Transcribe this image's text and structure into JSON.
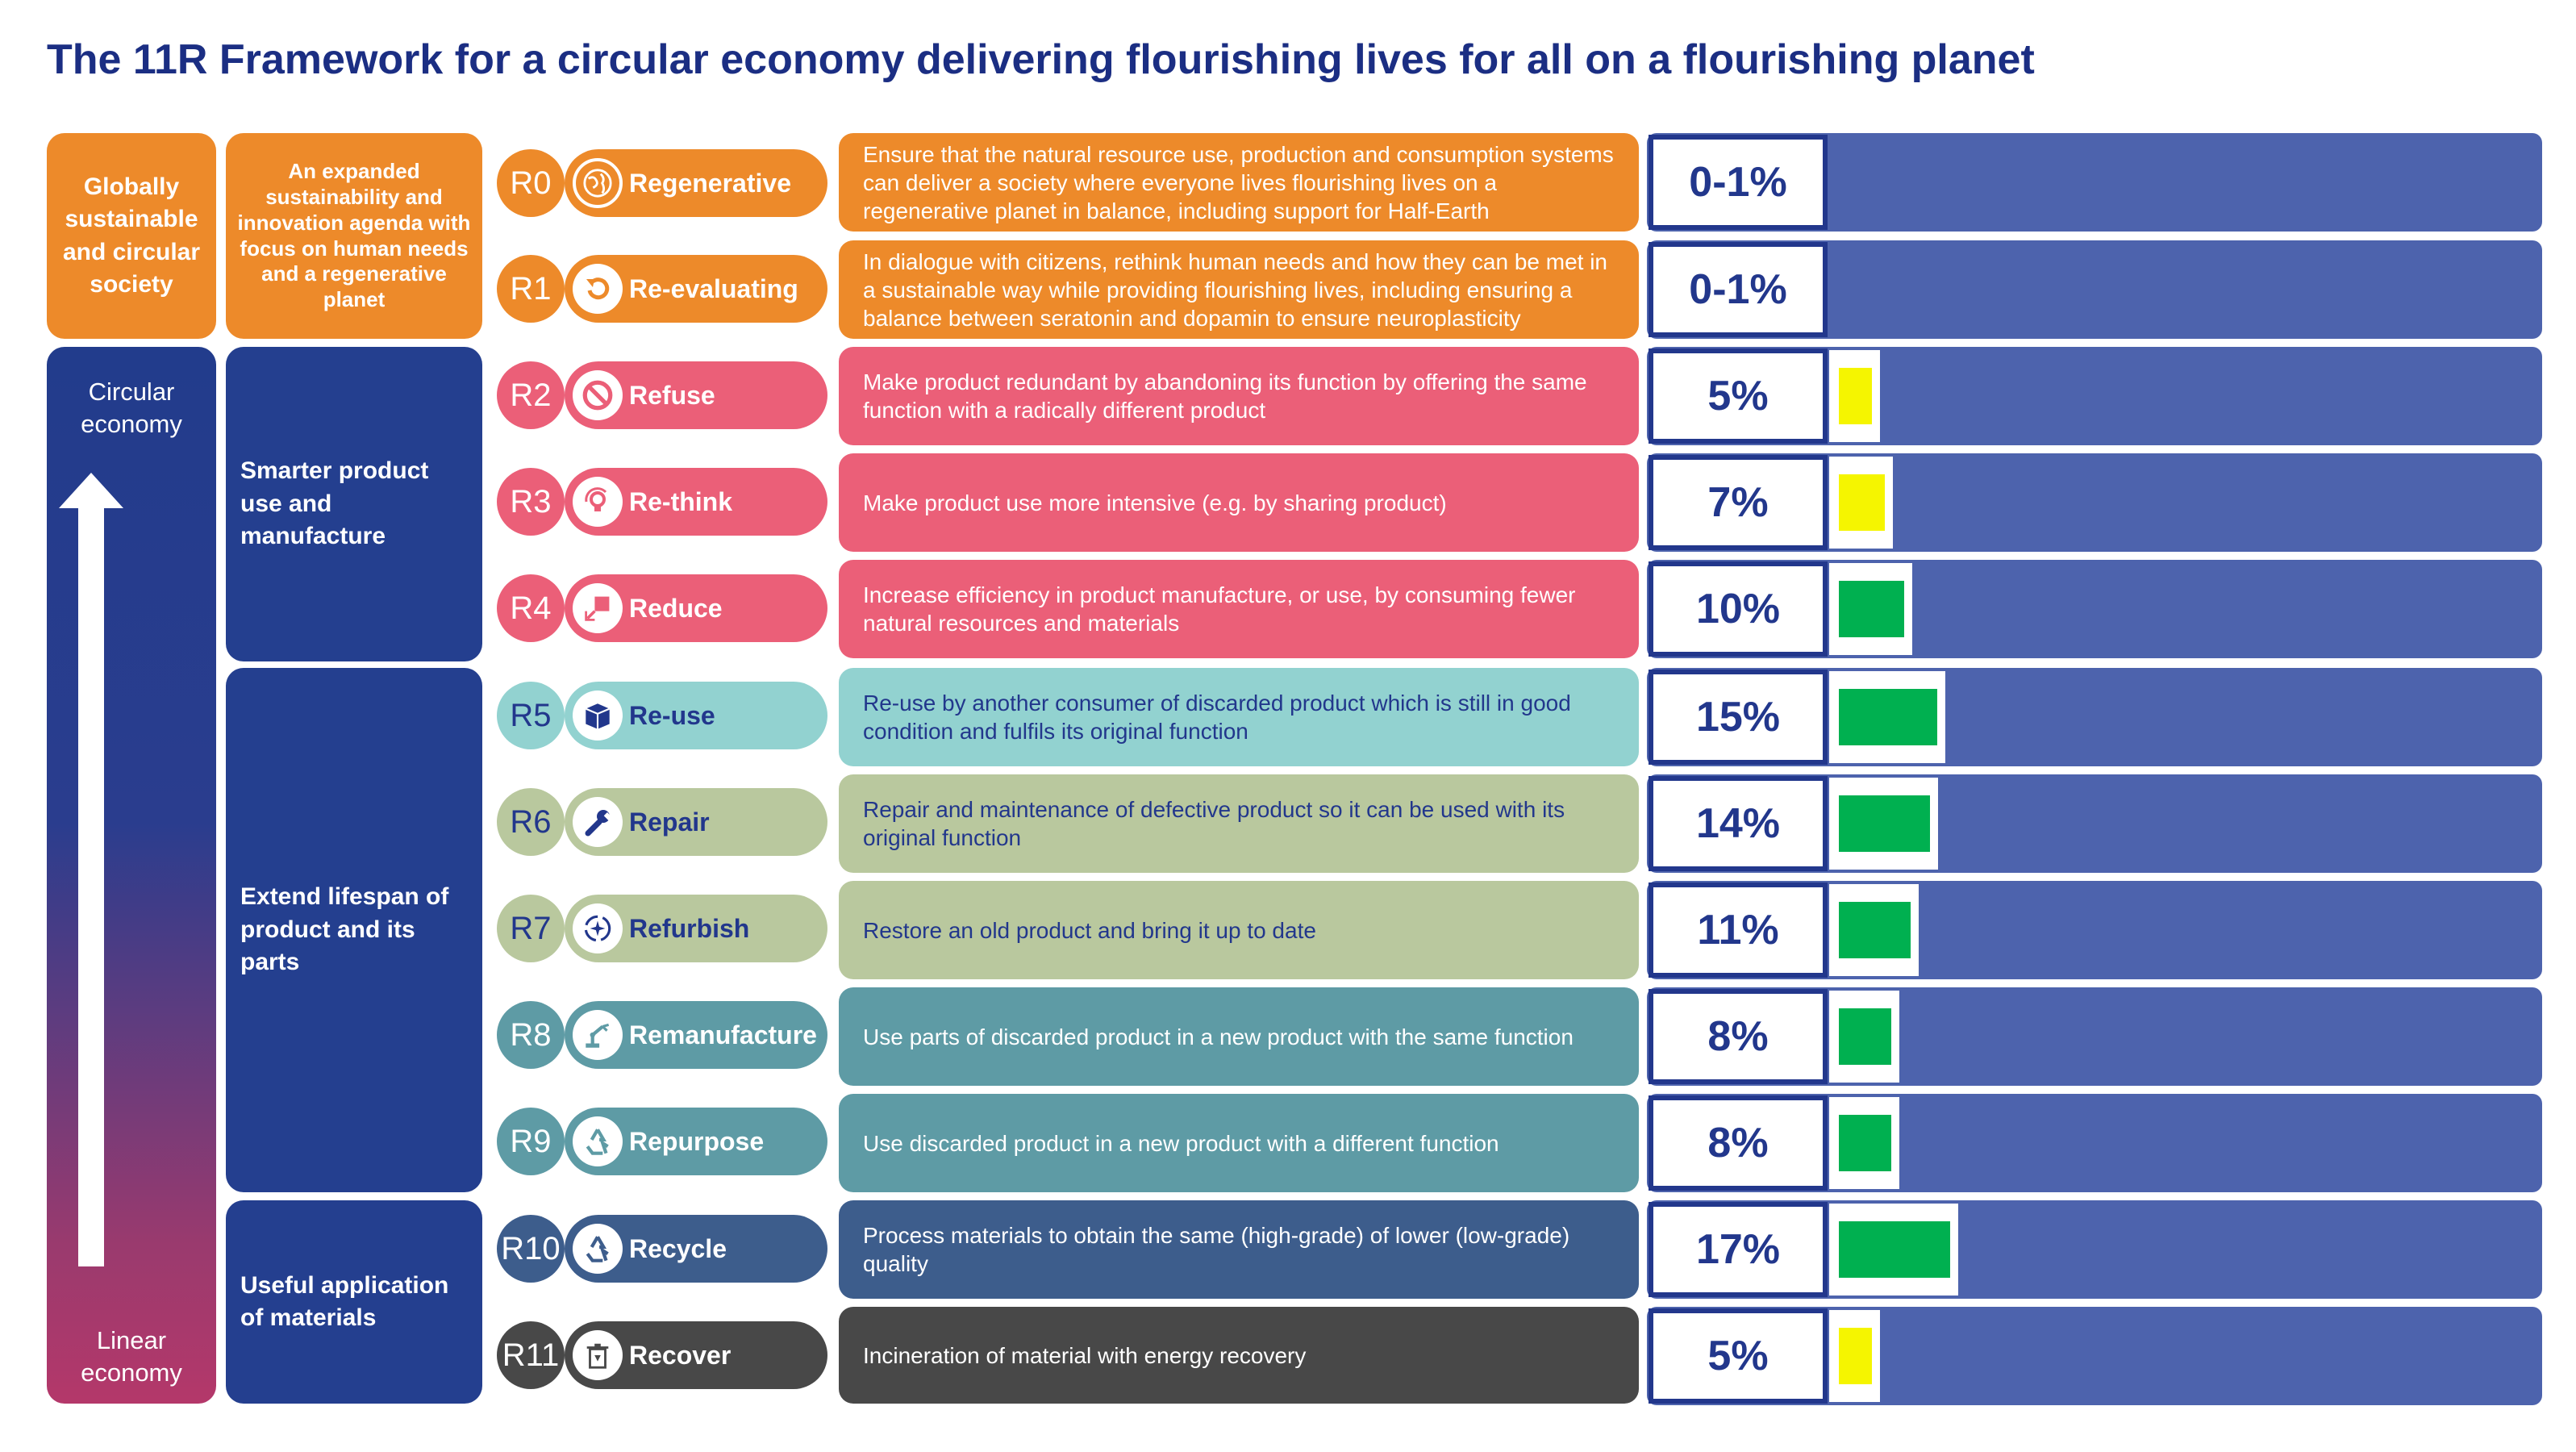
{
  "title": "The 11R Framework for a circular economy delivering flourishing lives for all on a flourishing planet",
  "col1": {
    "top_label": "Globally sustainable and circular society",
    "circular_label": "Circular economy",
    "linear_label": "Linear economy"
  },
  "groups": {
    "g0": "An expanded sustainability and innovation agenda with focus on human needs and a regenerative planet",
    "g1": "Smarter product use and manufacture",
    "g2": "Extend lifespan of product and its parts",
    "g3": "Useful application of materials"
  },
  "rows": [
    {
      "code": "R0",
      "name": "Regenerative",
      "icon": "globe-icon",
      "desc": "Ensure that the natural resource use, production and consumption systems can deliver a society where everyone lives flourishing lives on a regenerative planet in balance, including support for Half-Earth",
      "pct": "0-1%",
      "share": 0.5,
      "bar_color": ""
    },
    {
      "code": "R1",
      "name": "Re-evaluating",
      "icon": "rotate-icon",
      "desc": "In dialogue with citizens, rethink human needs and how they can be met in a sustainable way while providing flourishing lives, including ensuring a balance between seratonin and dopamin to ensure neuroplasticity",
      "pct": "0-1%",
      "share": 0.5,
      "bar_color": ""
    },
    {
      "code": "R2",
      "name": "Refuse",
      "icon": "ban-icon",
      "desc": "Make product redundant by abandoning its function by offering the same function with a radically different product",
      "pct": "5%",
      "share": 5,
      "bar_color": "#f5f500"
    },
    {
      "code": "R3",
      "name": "Re-think",
      "icon": "lightbulb-icon",
      "desc": "Make product use more intensive (e.g. by sharing product)",
      "pct": "7%",
      "share": 7,
      "bar_color": "#f5f500"
    },
    {
      "code": "R4",
      "name": "Reduce",
      "icon": "shrink-icon",
      "desc": "Increase efficiency in product manufacture, or use, by consuming fewer natural resources and materials",
      "pct": "10%",
      "share": 10,
      "bar_color": "#00b050"
    },
    {
      "code": "R5",
      "name": "Re-use",
      "icon": "box-icon",
      "desc": "Re-use by another consumer of discarded product which is still in good condition and fulfils its original function",
      "pct": "15%",
      "share": 15,
      "bar_color": "#00b050"
    },
    {
      "code": "R6",
      "name": "Repair",
      "icon": "wrench-icon",
      "desc": "Repair and maintenance of defective product so it can be used with its original function",
      "pct": "14%",
      "share": 14,
      "bar_color": "#00b050"
    },
    {
      "code": "R7",
      "name": "Refurbish",
      "icon": "sparkle-refresh-icon",
      "desc": "Restore an old product and bring it up to date",
      "pct": "11%",
      "share": 11,
      "bar_color": "#00b050"
    },
    {
      "code": "R8",
      "name": "Remanufacture",
      "icon": "robot-arm-icon",
      "desc": "Use parts of discarded product in a new product with the same function",
      "pct": "8%",
      "share": 8,
      "bar_color": "#00b050"
    },
    {
      "code": "R9",
      "name": "Repurpose",
      "icon": "recycle-icon",
      "desc": "Use discarded product in a new product with a different function",
      "pct": "8%",
      "share": 8,
      "bar_color": "#00b050"
    },
    {
      "code": "R10",
      "name": "Recycle",
      "icon": "recycle-icon",
      "desc": "Process materials to obtain the same (high-grade) of lower (low-grade) quality",
      "pct": "17%",
      "share": 17,
      "bar_color": "#00b050"
    },
    {
      "code": "R11",
      "name": "Recover",
      "icon": "bin-icon",
      "desc": "Incineration of material with energy recovery",
      "pct": "5%",
      "share": 5,
      "bar_color": "#f5f500"
    }
  ],
  "colors": {
    "title": "#1b2e83",
    "orange": "#ed8a2a",
    "pink": "#eb5f78",
    "teal_light": "#92d2d0",
    "sage": "#b9c89e",
    "teal_dark": "#5e9ba5",
    "slate_blue": "#3d5d8c",
    "dark_gray": "#484848",
    "group_blue": "#243f8f",
    "band_blue": "#4d63ad",
    "pct_border": "#22378c"
  }
}
